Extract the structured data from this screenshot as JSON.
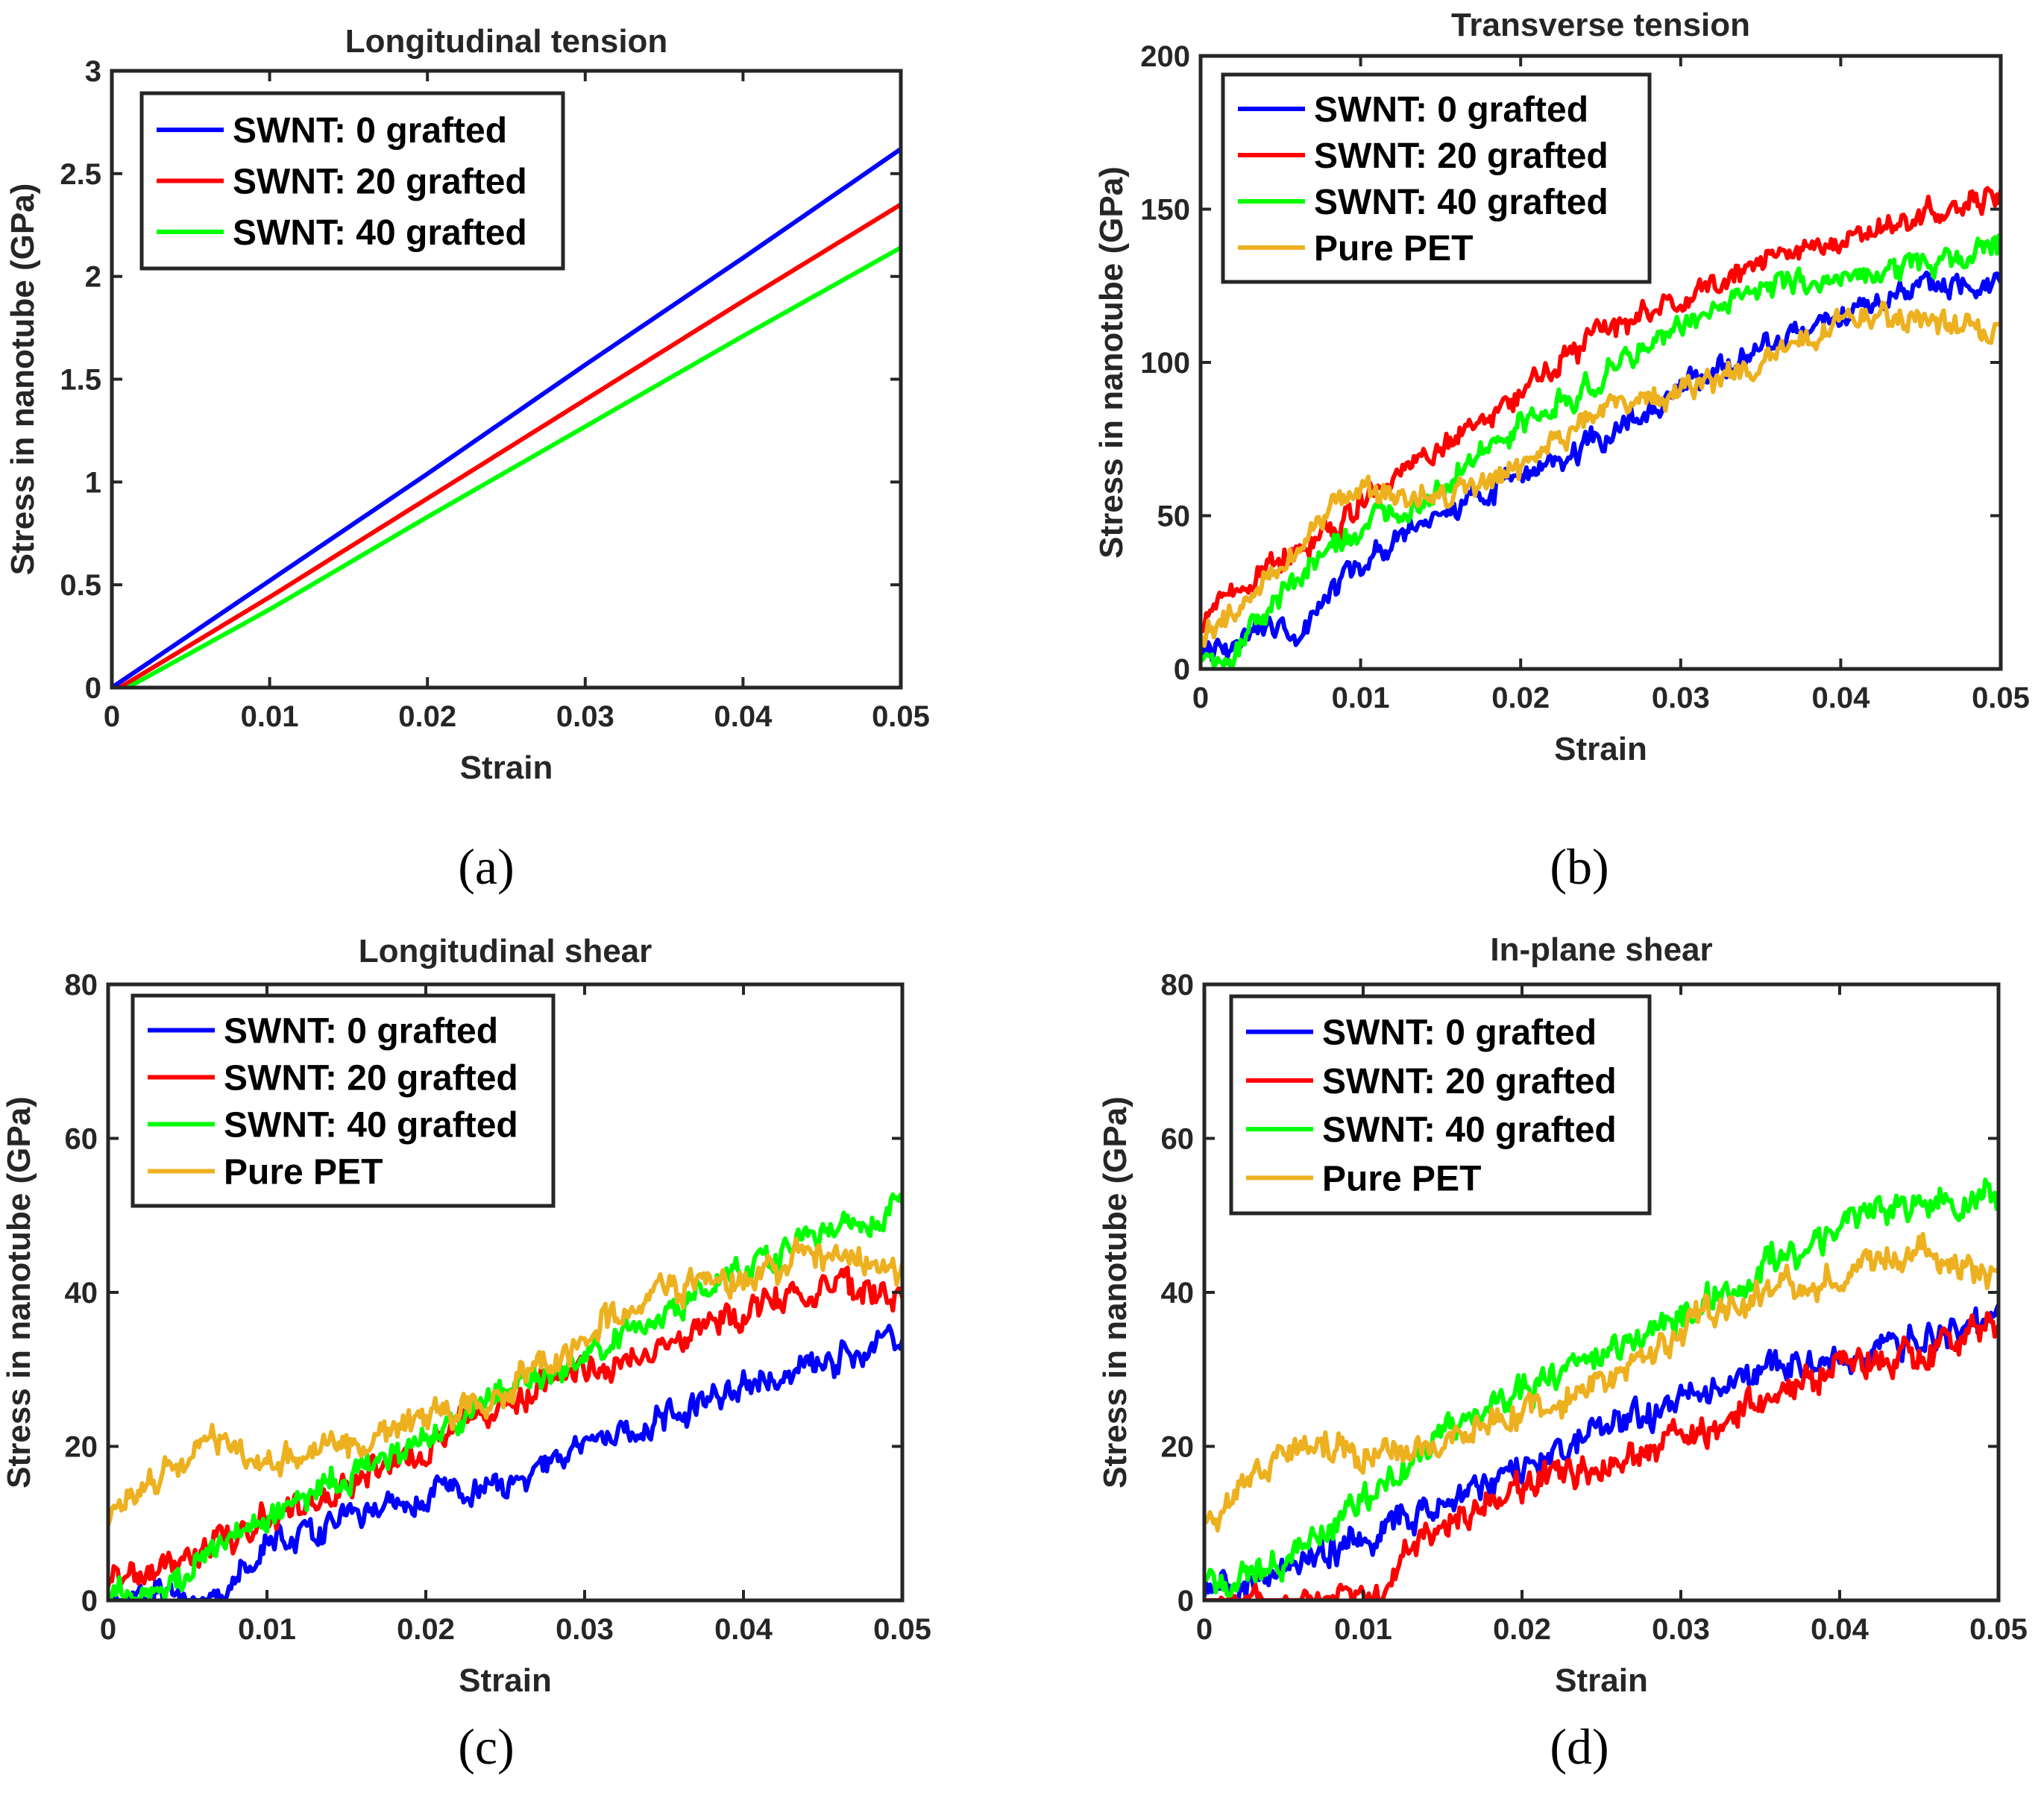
{
  "figure": {
    "panels": [
      "(a)",
      "(b)",
      "(c)",
      "(d)"
    ]
  },
  "chart_data": [
    {
      "type": "line",
      "panel_label": "(a)",
      "title": "Longitudinal tension",
      "xlabel": "Strain",
      "ylabel": "Stress in nanotube (GPa)",
      "xlim": [
        0,
        0.05
      ],
      "ylim": [
        0,
        3
      ],
      "xticks": [
        0,
        0.01,
        0.02,
        0.03,
        0.04,
        0.05
      ],
      "xtick_labels": [
        "0",
        "0.01",
        "0.02",
        "0.03",
        "0.04",
        "0.05"
      ],
      "yticks": [
        0,
        0.5,
        1,
        1.5,
        2,
        2.5,
        3
      ],
      "ytick_labels": [
        "0",
        "0.5",
        "1",
        "1.5",
        "2",
        "2.5",
        "3"
      ],
      "legend_position": "top-left",
      "noise": 0,
      "series": [
        {
          "name": "SWNT: 0 grafted",
          "color": "#0000ff",
          "x": [
            0,
            0.01,
            0.02,
            0.03,
            0.04,
            0.05
          ],
          "values": [
            0,
            0.52,
            1.04,
            1.57,
            2.09,
            2.62
          ]
        },
        {
          "name": "SWNT: 20 grafted",
          "color": "#ff0000",
          "x": [
            0.0005,
            0.01,
            0.02,
            0.03,
            0.04,
            0.05
          ],
          "values": [
            0,
            0.44,
            0.92,
            1.4,
            1.88,
            2.35
          ]
        },
        {
          "name": "SWNT: 40 grafted",
          "color": "#00ff00",
          "x": [
            0.001,
            0.01,
            0.02,
            0.03,
            0.04,
            0.05
          ],
          "values": [
            0,
            0.38,
            0.83,
            1.27,
            1.71,
            2.14
          ]
        }
      ]
    },
    {
      "type": "line",
      "panel_label": "(b)",
      "title": "Transverse tension",
      "xlabel": "Strain",
      "ylabel": "Stress in nanotube (GPa)",
      "xlim": [
        0,
        0.05
      ],
      "ylim": [
        0,
        200
      ],
      "xticks": [
        0,
        0.01,
        0.02,
        0.03,
        0.04,
        0.05
      ],
      "xtick_labels": [
        "0",
        "0.01",
        "0.02",
        "0.03",
        "0.04",
        "0.05"
      ],
      "yticks": [
        0,
        50,
        100,
        150,
        200
      ],
      "ytick_labels": [
        "0",
        "50",
        "100",
        "150",
        "200"
      ],
      "legend_position": "top-left",
      "noise": 3.5,
      "series": [
        {
          "name": "SWNT: 0 grafted",
          "color": "#0000ff",
          "x": [
            0,
            0.002,
            0.004,
            0.006,
            0.008,
            0.01,
            0.015,
            0.02,
            0.025,
            0.03,
            0.035,
            0.04,
            0.045,
            0.05
          ],
          "values": [
            5,
            5,
            15,
            12,
            25,
            35,
            50,
            62,
            75,
            92,
            105,
            115,
            125,
            128
          ]
        },
        {
          "name": "SWNT: 20 grafted",
          "color": "#ff0000",
          "x": [
            0,
            0.002,
            0.004,
            0.006,
            0.008,
            0.01,
            0.015,
            0.02,
            0.025,
            0.03,
            0.035,
            0.04,
            0.045,
            0.05
          ],
          "values": [
            15,
            25,
            32,
            38,
            45,
            55,
            72,
            90,
            110,
            120,
            133,
            140,
            147,
            155
          ]
        },
        {
          "name": "SWNT: 40 grafted",
          "color": "#00ff00",
          "x": [
            0,
            0.002,
            0.004,
            0.006,
            0.008,
            0.01,
            0.015,
            0.02,
            0.025,
            0.03,
            0.035,
            0.04,
            0.045,
            0.05
          ],
          "values": [
            2,
            5,
            18,
            30,
            38,
            45,
            60,
            78,
            95,
            112,
            125,
            128,
            132,
            138
          ]
        },
        {
          "name": "Pure PET",
          "color": "#edb120",
          "x": [
            0,
            0.002,
            0.004,
            0.006,
            0.008,
            0.01,
            0.015,
            0.02,
            0.025,
            0.03,
            0.035,
            0.04,
            0.045,
            0.05
          ],
          "values": [
            10,
            18,
            28,
            40,
            52,
            60,
            55,
            65,
            85,
            90,
            100,
            112,
            115,
            110
          ]
        }
      ]
    },
    {
      "type": "line",
      "panel_label": "(c)",
      "title": "Longitudinal shear",
      "xlabel": "Strain",
      "ylabel": "Stress in nanotube (GPa)",
      "xlim": [
        0,
        0.05
      ],
      "ylim": [
        0,
        80
      ],
      "xticks": [
        0,
        0.01,
        0.02,
        0.03,
        0.04,
        0.05
      ],
      "xtick_labels": [
        "0",
        "0.01",
        "0.02",
        "0.03",
        "0.04",
        "0.05"
      ],
      "yticks": [
        0,
        20,
        40,
        60,
        80
      ],
      "ytick_labels": [
        "0",
        "20",
        "40",
        "60",
        "80"
      ],
      "legend_position": "top-left",
      "noise": 1.6,
      "series": [
        {
          "name": "SWNT: 0 grafted",
          "color": "#0000ff",
          "x": [
            0,
            0.003,
            0.007,
            0.01,
            0.015,
            0.02,
            0.025,
            0.03,
            0.035,
            0.04,
            0.045,
            0.05
          ],
          "values": [
            0,
            1,
            1,
            7,
            11,
            14,
            15,
            20,
            24,
            28,
            31,
            34
          ]
        },
        {
          "name": "SWNT: 20 grafted",
          "color": "#ff0000",
          "x": [
            0,
            0.003,
            0.007,
            0.01,
            0.015,
            0.02,
            0.025,
            0.03,
            0.035,
            0.04,
            0.045,
            0.05
          ],
          "values": [
            2,
            4,
            7,
            10,
            15,
            20,
            26,
            30,
            33,
            38,
            41,
            40
          ]
        },
        {
          "name": "SWNT: 40 grafted",
          "color": "#00ff00",
          "x": [
            0,
            0.003,
            0.007,
            0.01,
            0.015,
            0.02,
            0.025,
            0.03,
            0.035,
            0.04,
            0.045,
            0.05
          ],
          "values": [
            0,
            1,
            7,
            11,
            16,
            21,
            27,
            32,
            38,
            43,
            48,
            51
          ]
        },
        {
          "name": "Pure PET",
          "color": "#edb120",
          "x": [
            0,
            0.003,
            0.007,
            0.01,
            0.015,
            0.02,
            0.025,
            0.03,
            0.035,
            0.04,
            0.045,
            0.05
          ],
          "values": [
            10,
            16,
            21,
            18,
            20,
            24,
            27,
            34,
            40,
            42,
            45,
            42
          ]
        }
      ]
    },
    {
      "type": "line",
      "panel_label": "(d)",
      "title": "In-plane shear",
      "xlabel": "Strain",
      "ylabel": "Stress in nanotube (GPa)",
      "xlim": [
        0,
        0.05
      ],
      "ylim": [
        0,
        80
      ],
      "xticks": [
        0,
        0.01,
        0.02,
        0.03,
        0.04,
        0.05
      ],
      "xtick_labels": [
        "0",
        "0.01",
        "0.02",
        "0.03",
        "0.04",
        "0.05"
      ],
      "yticks": [
        0,
        20,
        40,
        60,
        80
      ],
      "ytick_labels": [
        "0",
        "20",
        "40",
        "60",
        "80"
      ],
      "legend_position": "top-left",
      "noise": 1.7,
      "series": [
        {
          "name": "SWNT: 0 grafted",
          "color": "#0000ff",
          "x": [
            0,
            0.003,
            0.007,
            0.01,
            0.015,
            0.02,
            0.025,
            0.03,
            0.035,
            0.04,
            0.045,
            0.05
          ],
          "values": [
            1,
            3,
            6,
            8,
            13,
            17,
            22,
            26,
            29,
            31,
            34,
            37
          ]
        },
        {
          "name": "SWNT: 20 grafted",
          "color": "#ff0000",
          "x": [
            0,
            0.006,
            0.011,
            0.013,
            0.017,
            0.02,
            0.025,
            0.03,
            0.035,
            0.04,
            0.045,
            0.05
          ],
          "values": [
            0,
            0,
            0,
            7,
            12,
            15,
            18,
            21,
            25,
            30,
            32,
            36
          ]
        },
        {
          "name": "SWNT: 40 grafted",
          "color": "#00ff00",
          "x": [
            0,
            0.003,
            0.007,
            0.01,
            0.015,
            0.02,
            0.025,
            0.03,
            0.035,
            0.04,
            0.045,
            0.05
          ],
          "values": [
            2,
            3,
            8,
            13,
            21,
            27,
            32,
            37,
            43,
            48,
            52,
            52
          ]
        },
        {
          "name": "Pure PET",
          "color": "#edb120",
          "x": [
            0,
            0.003,
            0.007,
            0.01,
            0.015,
            0.02,
            0.025,
            0.03,
            0.035,
            0.04,
            0.045,
            0.05
          ],
          "values": [
            10,
            16,
            21,
            19,
            21,
            25,
            28,
            35,
            40,
            42,
            46,
            42
          ]
        }
      ]
    }
  ]
}
